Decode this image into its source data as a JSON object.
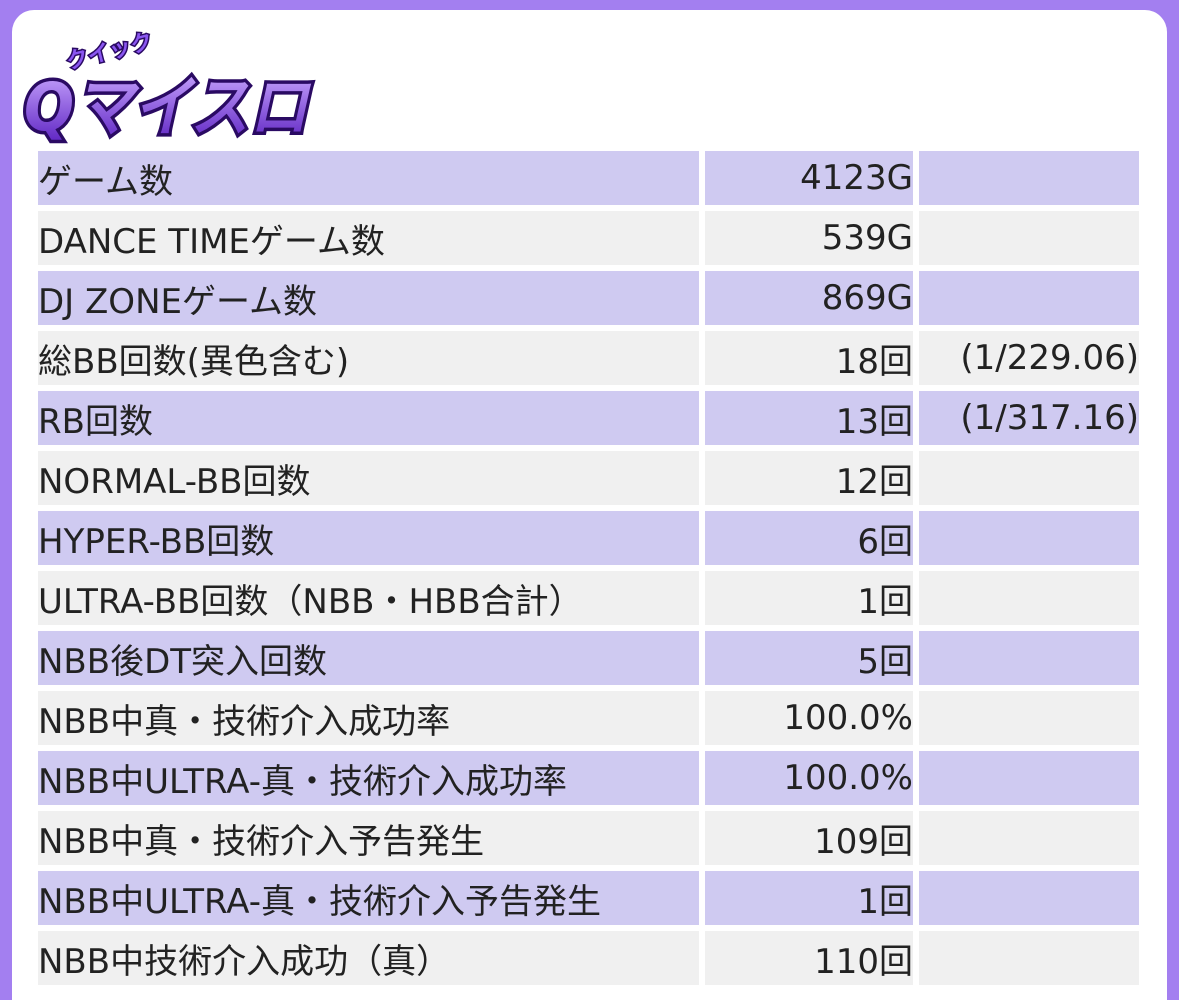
{
  "logo": {
    "ruby": "クイック",
    "text": "Qマイスロ",
    "colors": {
      "fill_top": "#c9a7ff",
      "fill_bottom": "#5a1fc0",
      "outline": "#2a0a63"
    }
  },
  "colors": {
    "frame": "#a37ff0",
    "row_odd": "#cfcaf1",
    "row_even": "#f0f0f0",
    "text": "#222222"
  },
  "rows": [
    {
      "label": "ゲーム数",
      "value": "4123G",
      "extra": ""
    },
    {
      "label": "DANCE TIMEゲーム数",
      "value": "539G",
      "extra": ""
    },
    {
      "label": "DJ ZONEゲーム数",
      "value": "869G",
      "extra": ""
    },
    {
      "label": "総BB回数(異色含む)",
      "value": "18回",
      "extra": "(1/229.06)"
    },
    {
      "label": "RB回数",
      "value": "13回",
      "extra": "(1/317.16)"
    },
    {
      "label": "NORMAL-BB回数",
      "value": "12回",
      "extra": ""
    },
    {
      "label": "HYPER-BB回数",
      "value": "6回",
      "extra": ""
    },
    {
      "label": "ULTRA-BB回数（NBB・HBB合計）",
      "value": "1回",
      "extra": ""
    },
    {
      "label": "NBB後DT突入回数",
      "value": "5回",
      "extra": ""
    },
    {
      "label": "NBB中真・技術介入成功率",
      "value": "100.0%",
      "extra": ""
    },
    {
      "label": "NBB中ULTRA-真・技術介入成功率",
      "value": "100.0%",
      "extra": ""
    },
    {
      "label": "NBB中真・技術介入予告発生",
      "value": "109回",
      "extra": ""
    },
    {
      "label": "NBB中ULTRA-真・技術介入予告発生",
      "value": "1回",
      "extra": ""
    },
    {
      "label": "NBB中技術介入成功（真）",
      "value": "110回",
      "extra": ""
    }
  ]
}
